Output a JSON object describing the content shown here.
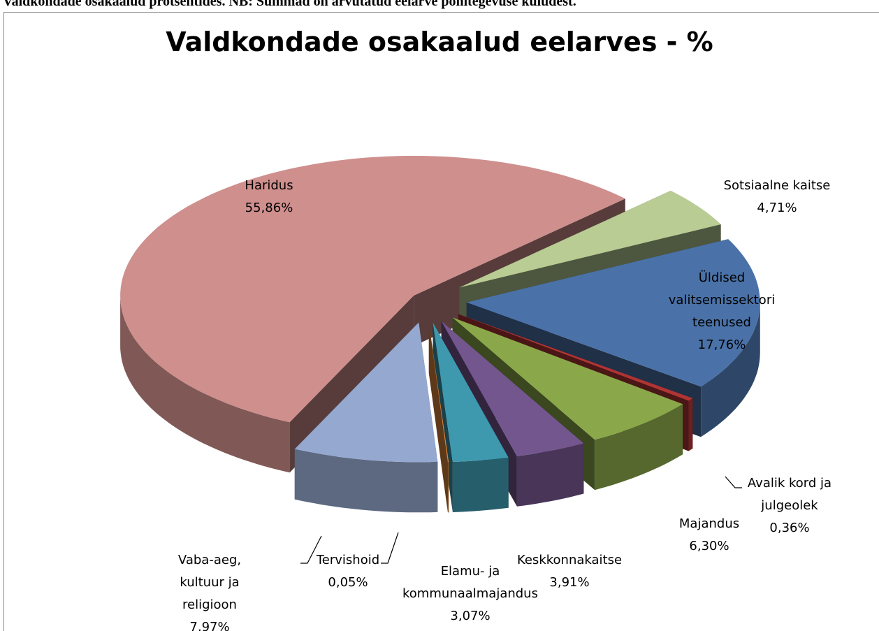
{
  "header": "Valdkondade osakaalud protsentides. NB: Summad on arvutatud eelarve põhitegevuse kuludest.",
  "chart_data": {
    "type": "pie3d",
    "title": "Valdkondade osakaalud eelarves - %",
    "categories": [
      "Haridus",
      "Sotsiaalne kaitse",
      "Üldised valitsemissektori teenused",
      "Avalik kord ja julgeolek",
      "Majandus",
      "Keskkonnakaitse",
      "Elamu- ja kommunaalmajandus",
      "Tervishoid",
      "Vaba-aeg, kultuur ja religioon"
    ],
    "values": [
      55.86,
      4.71,
      17.76,
      0.36,
      6.3,
      3.91,
      3.07,
      0.05,
      7.97
    ],
    "value_labels": [
      "55,86%",
      "4,71%",
      "17,76%",
      "0,36%",
      "6,30%",
      "3,91%",
      "3,07%",
      "0,05%",
      "7,97%"
    ],
    "colors": [
      "#cf8f8d",
      "#b8cc94",
      "#4a72a8",
      "#b03434",
      "#8aa84a",
      "#74568e",
      "#3e98ae",
      "#e0873c",
      "#95a9d0"
    ]
  }
}
